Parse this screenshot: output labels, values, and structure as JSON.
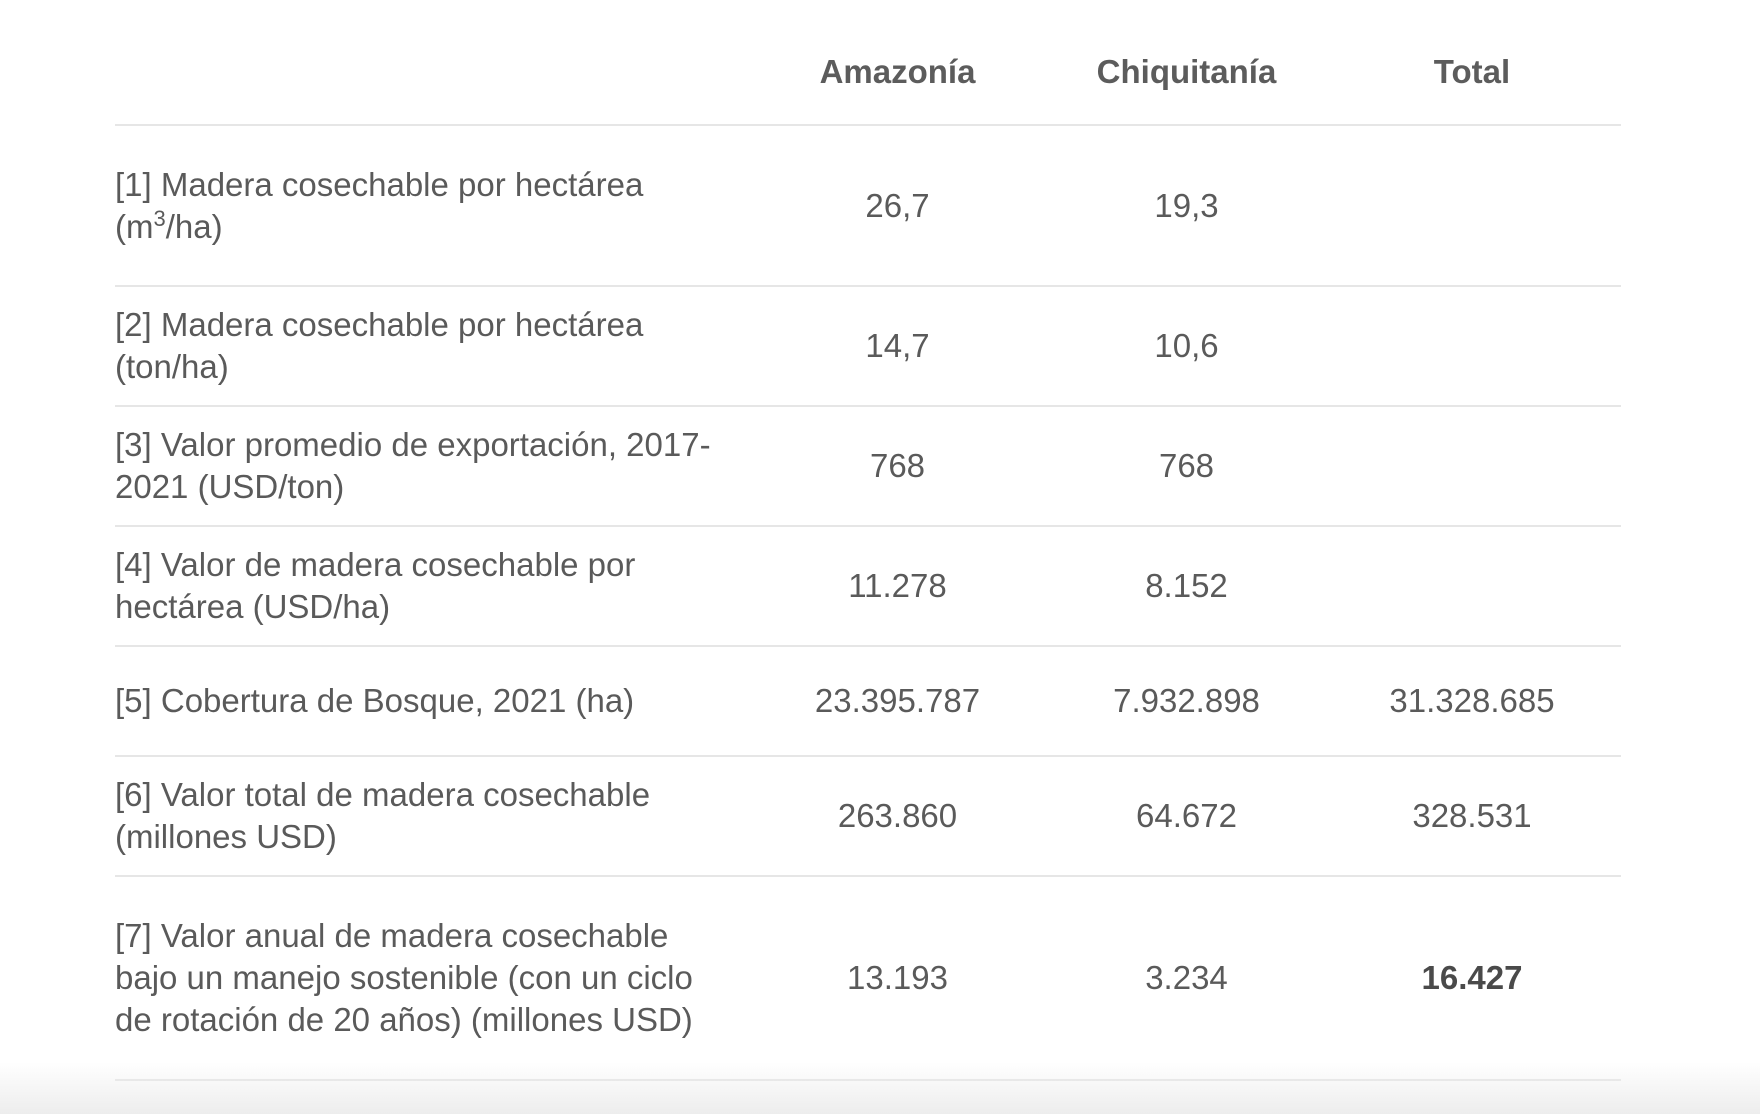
{
  "table": {
    "headers": [
      "",
      "Amazonía",
      "Chiquitanía",
      "Total"
    ],
    "rows": [
      {
        "label_pre": "[1] Madera cosechable por hectárea (m",
        "label_sup": "3",
        "label_post": "/ha)",
        "amazonia": "26,7",
        "chiquitania": "19,3",
        "total": ""
      },
      {
        "label": "[2] Madera cosechable por hectárea (ton/ha)",
        "amazonia": "14,7",
        "chiquitania": "10,6",
        "total": ""
      },
      {
        "label": "[3] Valor promedio de exportación, 2017-2021 (USD/ton)",
        "amazonia": "768",
        "chiquitania": "768",
        "total": ""
      },
      {
        "label": "[4] Valor de madera cosechable por hectárea (USD/ha)",
        "amazonia": "11.278",
        "chiquitania": "8.152",
        "total": ""
      },
      {
        "label": "[5] Cobertura de Bosque, 2021 (ha)",
        "amazonia": "23.395.787",
        "chiquitania": "7.932.898",
        "total": "31.328.685"
      },
      {
        "label": "[6] Valor total de madera cosechable (millones USD)",
        "amazonia": "263.860",
        "chiquitania": "64.672",
        "total": "328.531"
      },
      {
        "label": "[7] Valor anual de madera cosechable bajo un manejo sostenible (con un ciclo de rotación de 20 años) (millones USD)",
        "amazonia": "13.193",
        "chiquitania": "3.234",
        "total": "16.427"
      }
    ]
  },
  "colors": {
    "text": "#5a5a5a",
    "rule": "#e6e6e6"
  }
}
